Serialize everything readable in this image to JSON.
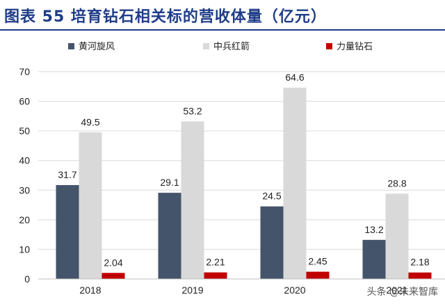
{
  "title": "图表 55   培育钻石相关标的营收体量（亿元）",
  "watermark": "头条 @未来智库",
  "chart_data": {
    "type": "bar",
    "title": "图表 55   培育钻石相关标的营收体量（亿元）",
    "xlabel": "",
    "ylabel": "",
    "ylim": [
      0,
      70
    ],
    "yticks": [
      0,
      10,
      20,
      30,
      40,
      50,
      60,
      70
    ],
    "grid": true,
    "legend_position": "top",
    "categories": [
      "2018",
      "2019",
      "2020",
      "2021"
    ],
    "series": [
      {
        "name": "黄河旋风",
        "color": "#44546a",
        "values": [
          31.7,
          29.1,
          24.5,
          13.2
        ],
        "labels": [
          "31.7",
          "29.1",
          "24.5",
          "13.2"
        ]
      },
      {
        "name": "中兵红箭",
        "color": "#d9d9d9",
        "values": [
          49.5,
          53.2,
          64.6,
          28.8
        ],
        "labels": [
          "49.5",
          "53.2",
          "64.6",
          "28.8"
        ]
      },
      {
        "name": "力量钻石",
        "color": "#c00000",
        "values": [
          2.04,
          2.21,
          2.45,
          2.18
        ],
        "labels": [
          "2.04",
          "2.21",
          "2.45",
          "2.18"
        ]
      }
    ]
  }
}
